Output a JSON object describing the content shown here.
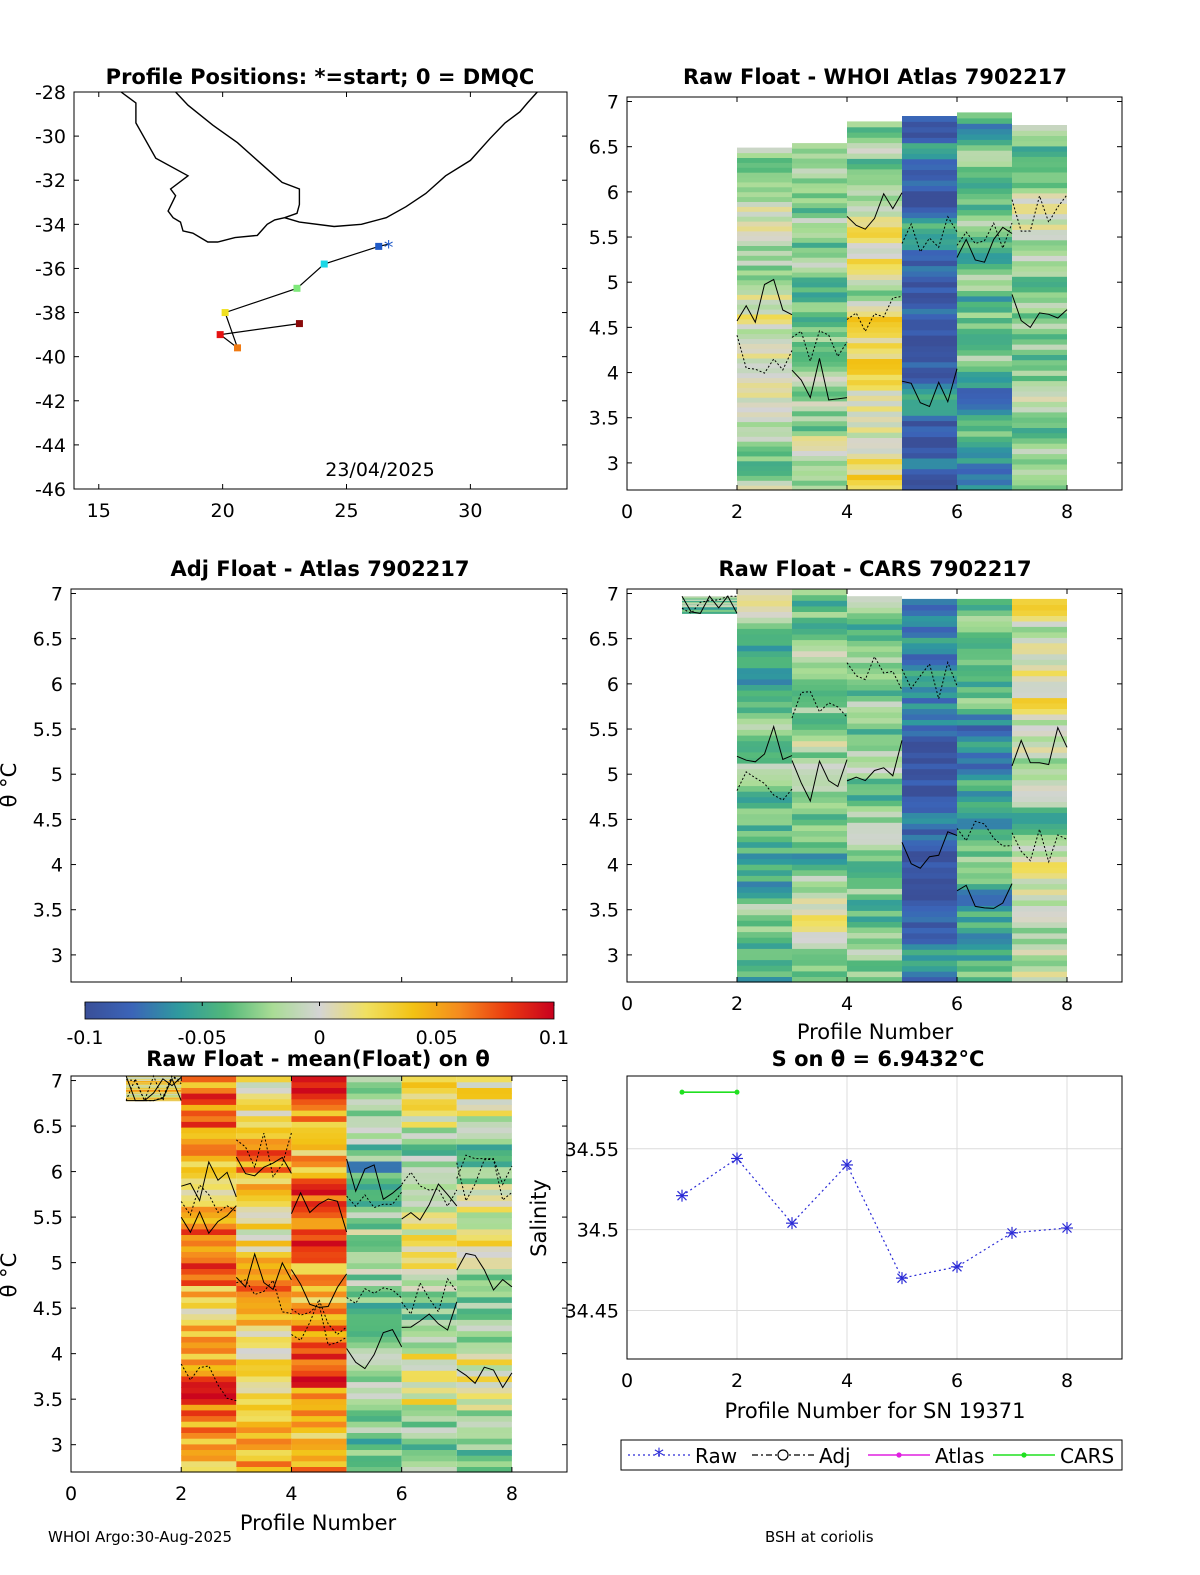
{
  "footer": {
    "left": "WHOI Argo:30-Aug-2025",
    "right": "BSH at coriolis"
  },
  "colorbar": {
    "ticks": [
      "-0.1",
      "-0.05",
      "0",
      "0.05",
      "0.1"
    ],
    "range": [
      -0.1,
      0.1
    ],
    "stops": [
      "#3a4f98",
      "#3b64b8",
      "#2f9a9e",
      "#52b87a",
      "#a9dc95",
      "#d4d4d4",
      "#f0e060",
      "#f2c214",
      "#f58a1e",
      "#ea3a10",
      "#c8001e"
    ]
  },
  "chart_data": [
    {
      "id": "positions",
      "type": "scatter",
      "title": "Profile Positions: *=start; 0 = DMQC",
      "xlim": [
        14,
        33.9
      ],
      "ylim": [
        -46,
        -28
      ],
      "xticks": [
        "15",
        "20",
        "25",
        "30"
      ],
      "yticks": [
        "-28",
        "-30",
        "-32",
        "-34",
        "-36",
        "-38",
        "-40",
        "-42",
        "-44",
        "-46"
      ],
      "annotation": "23/04/2025",
      "coastline": [
        [
          18.1,
          -28
        ],
        [
          18.6,
          -28.6
        ],
        [
          19.6,
          -29.5
        ],
        [
          20.6,
          -30.3
        ],
        [
          21.6,
          -31.3
        ],
        [
          22.4,
          -32.1
        ],
        [
          23.1,
          -32.4
        ],
        [
          23.1,
          -33.1
        ],
        [
          23.0,
          -33.5
        ],
        [
          22.5,
          -33.7
        ],
        [
          22.1,
          -33.8
        ],
        [
          21.8,
          -34.0
        ],
        [
          21.4,
          -34.5
        ],
        [
          20.5,
          -34.6
        ],
        [
          19.8,
          -34.8
        ],
        [
          19.4,
          -34.8
        ],
        [
          18.8,
          -34.4
        ],
        [
          18.4,
          -34.3
        ],
        [
          18.3,
          -33.9
        ],
        [
          18.0,
          -33.7
        ],
        [
          17.8,
          -33.4
        ],
        [
          18.1,
          -32.7
        ],
        [
          17.9,
          -32.4
        ],
        [
          18.6,
          -31.8
        ],
        [
          17.3,
          -31.0
        ],
        [
          16.5,
          -29.4
        ],
        [
          16.5,
          -28.5
        ],
        [
          15.9,
          -28.0
        ]
      ],
      "track": [
        [
          26.7,
          -34.9
        ],
        [
          26.3,
          -35.0
        ],
        [
          24.1,
          -35.8
        ],
        [
          23.0,
          -36.9
        ],
        [
          20.1,
          -38.0
        ],
        [
          20.6,
          -39.6
        ],
        [
          19.9,
          -39.0
        ],
        [
          23.1,
          -38.5
        ]
      ],
      "positions": [
        {
          "lon": 26.3,
          "lat": -35.0,
          "color": "#1f5ac8"
        },
        {
          "lon": 24.1,
          "lat": -35.8,
          "color": "#1ad8e6"
        },
        {
          "lon": 23.0,
          "lat": -36.9,
          "color": "#7ee87a"
        },
        {
          "lon": 20.1,
          "lat": -38.0,
          "color": "#f0e020"
        },
        {
          "lon": 20.6,
          "lat": -39.6,
          "color": "#f07a12"
        },
        {
          "lon": 19.9,
          "lat": -39.0,
          "color": "#e51212"
        },
        {
          "lon": 23.1,
          "lat": -38.5,
          "color": "#8a0a0a"
        }
      ]
    },
    {
      "id": "raw-atlas",
      "type": "heatmap",
      "title": "Raw Float - WHOI Atlas  7902217",
      "xlim": [
        0,
        9
      ],
      "ylim": [
        2.7,
        7.05
      ],
      "xticks": [
        "0",
        "2",
        "4",
        "6",
        "8"
      ],
      "yticks": [
        "3",
        "3.5",
        "4",
        "4.5",
        "5",
        "5.5",
        "6",
        "6.5",
        "7"
      ],
      "columns": [
        {
          "profile": 2,
          "top": 6.49,
          "seed": 11,
          "bias": -0.01
        },
        {
          "profile": 3,
          "top": 6.54,
          "seed": 23,
          "bias": -0.03
        },
        {
          "profile": 4,
          "top": 6.78,
          "seed": 37,
          "bias": 0.0
        },
        {
          "profile": 5,
          "top": 6.84,
          "seed": 41,
          "bias": -0.08
        },
        {
          "profile": 6,
          "top": 6.88,
          "seed": 53,
          "bias": -0.04
        },
        {
          "profile": 7,
          "top": 6.74,
          "seed": 67,
          "bias": -0.02
        }
      ]
    },
    {
      "id": "adj-atlas",
      "type": "heatmap",
      "title": "Adj Float - Atlas  7902217",
      "xlim": [
        0,
        9
      ],
      "ylim": [
        2.7,
        7.05
      ],
      "xticks": [],
      "yticks": [
        "3",
        "3.5",
        "4",
        "4.5",
        "5",
        "5.5",
        "6",
        "6.5",
        "7"
      ],
      "ylabel": "θ °C",
      "columns": []
    },
    {
      "id": "raw-cars",
      "type": "heatmap",
      "title": "Raw Float - CARS  7902217",
      "xlabel": "Profile Number",
      "xlim": [
        0,
        9
      ],
      "ylim": [
        2.7,
        7.05
      ],
      "xticks": [
        "0",
        "2",
        "4",
        "6",
        "8"
      ],
      "yticks": [
        "3",
        "3.5",
        "4",
        "4.5",
        "5",
        "5.5",
        "6",
        "6.5",
        "7"
      ],
      "columns": [
        {
          "profile": 1,
          "top": 6.97,
          "bottom": 6.78,
          "seed": 5,
          "bias": -0.03
        },
        {
          "profile": 2,
          "top": 7.05,
          "seed": 13,
          "bias": -0.04
        },
        {
          "profile": 3,
          "top": 7.05,
          "seed": 29,
          "bias": -0.02
        },
        {
          "profile": 4,
          "top": 6.97,
          "seed": 31,
          "bias": -0.03
        },
        {
          "profile": 5,
          "top": 6.94,
          "seed": 43,
          "bias": -0.08
        },
        {
          "profile": 6,
          "top": 6.94,
          "seed": 59,
          "bias": -0.05
        },
        {
          "profile": 7,
          "top": 6.94,
          "seed": 71,
          "bias": -0.01
        }
      ]
    },
    {
      "id": "raw-mean",
      "type": "heatmap",
      "title": "Raw Float - mean(Float) on θ",
      "xlabel": "Profile Number",
      "ylabel": "θ °C",
      "xlim": [
        0,
        9
      ],
      "ylim": [
        2.7,
        7.05
      ],
      "xticks": [
        "0",
        "2",
        "4",
        "6",
        "8"
      ],
      "yticks": [
        "3",
        "3.5",
        "4",
        "4.5",
        "5",
        "5.5",
        "6",
        "6.5",
        "7"
      ],
      "columns": [
        {
          "profile": 1,
          "top": 7.05,
          "bottom": 6.78,
          "seed": 7,
          "bias": 0.02
        },
        {
          "profile": 2,
          "top": 7.05,
          "seed": 17,
          "bias": 0.05
        },
        {
          "profile": 3,
          "top": 7.05,
          "seed": 19,
          "bias": 0.035
        },
        {
          "profile": 4,
          "top": 7.05,
          "seed": 47,
          "bias": 0.06
        },
        {
          "profile": 5,
          "top": 7.05,
          "seed": 61,
          "bias": -0.03
        },
        {
          "profile": 6,
          "top": 7.05,
          "seed": 73,
          "bias": -0.005
        },
        {
          "profile": 7,
          "top": 7.05,
          "seed": 79,
          "bias": -0.01
        }
      ]
    },
    {
      "id": "salinity",
      "type": "line",
      "title": "S on θ = 6.9432°C",
      "xlabel": "Profile Number for SN 19371",
      "ylabel": "Salinity",
      "xlim": [
        0,
        9
      ],
      "ylim": [
        34.42,
        34.595
      ],
      "xticks": [
        "0",
        "2",
        "4",
        "6",
        "8"
      ],
      "yticks": [
        "34.45",
        "34.5",
        "34.55"
      ],
      "series": [
        {
          "name": "Raw",
          "color": "#2b2bd6",
          "x": [
            1,
            2,
            3,
            4,
            5,
            6,
            7,
            8
          ],
          "y": [
            34.521,
            34.544,
            34.504,
            34.54,
            34.47,
            34.477,
            34.498,
            34.501
          ]
        },
        {
          "name": "Adj",
          "color": "#000000",
          "x": [],
          "y": []
        },
        {
          "name": "Atlas",
          "color": "#e020e0",
          "x": [],
          "y": []
        },
        {
          "name": "CARS",
          "color": "#20e020",
          "x": [
            1,
            2
          ],
          "y": [
            34.585,
            34.585
          ]
        }
      ]
    }
  ]
}
